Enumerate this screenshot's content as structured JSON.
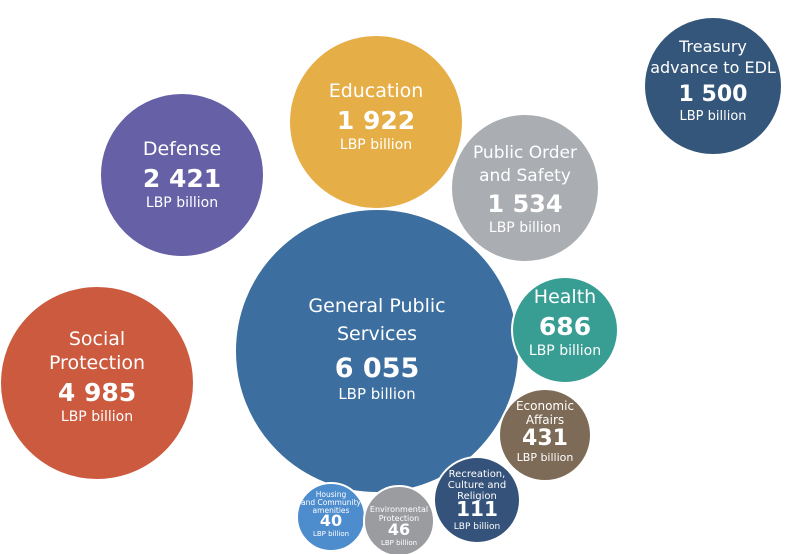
{
  "chart_data": {
    "type": "bubble",
    "unit": "LBP billion",
    "bubbles": [
      {
        "label": [
          "Social",
          "Protection"
        ],
        "value_text": "4 985",
        "value": 4985,
        "unit": "LBP billion",
        "color": "#cb5a3f"
      },
      {
        "label": [
          "Defense"
        ],
        "value_text": "2 421",
        "value": 2421,
        "unit": "LBP billion",
        "color": "#6660a6"
      },
      {
        "label": [
          "Education"
        ],
        "value_text": "1 922",
        "value": 1922,
        "unit": "LBP billion",
        "color": "#e6ae47"
      },
      {
        "label": [
          "Public Order",
          "and Safety"
        ],
        "value_text": "1 534",
        "value": 1534,
        "unit": "LBP billion",
        "color": "#aaadb2"
      },
      {
        "label": [
          "General Public",
          "Services"
        ],
        "value_text": "6 055",
        "value": 6055,
        "unit": "LBP billion",
        "color": "#3c6e9f"
      },
      {
        "label": [
          "Health"
        ],
        "value_text": "686",
        "value": 686,
        "unit": "LBP billion",
        "color": "#389e94"
      },
      {
        "label": [
          "Economic",
          "Affairs"
        ],
        "value_text": "431",
        "value": 431,
        "unit": "LBP billion",
        "color": "#7d6b57"
      },
      {
        "label": [
          "Recreation,",
          "Culture and",
          "Religion"
        ],
        "value_text": "111",
        "value": 111,
        "unit": "LBP billion",
        "color": "#34527a"
      },
      {
        "label": [
          "Housing",
          "and Community",
          "amenities"
        ],
        "value_text": "40",
        "value": 40,
        "unit": "LBP billion",
        "color": "#4d8ccd"
      },
      {
        "label": [
          "Environmental",
          "Protection"
        ],
        "value_text": "46",
        "value": 46,
        "unit": "LBP billion",
        "color": "#9a9ca0"
      },
      {
        "label": [
          "Treasury",
          "advance to EDL"
        ],
        "value_text": "1 500",
        "value": 1500,
        "unit": "LBP billion",
        "color": "#34567a"
      }
    ]
  }
}
